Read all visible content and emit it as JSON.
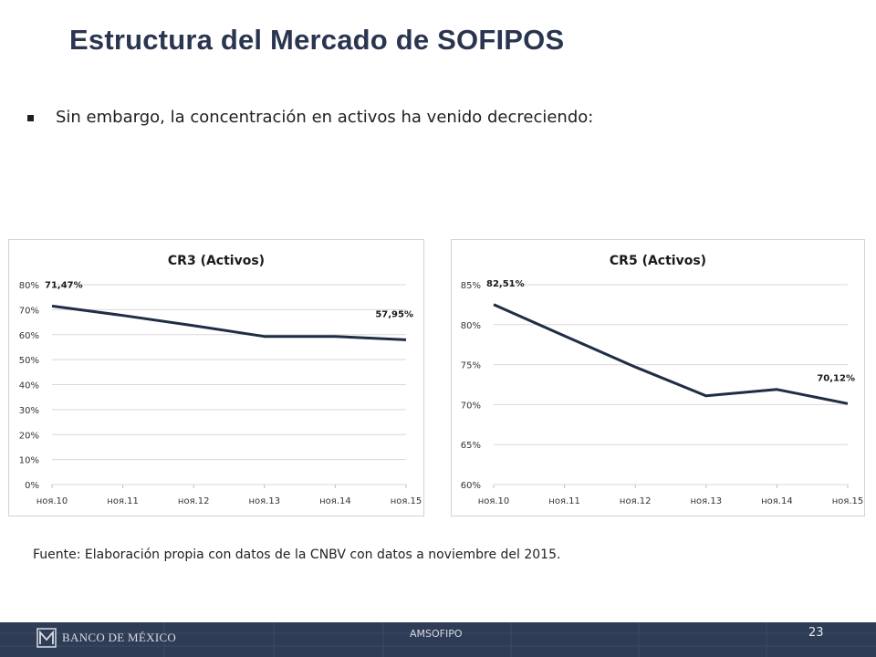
{
  "slide": {
    "title": "Estructura del Mercado de SOFIPOS",
    "bullet": "Sin embargo, la concentración en activos ha venido decreciendo:",
    "source": "Fuente: Elaboración propia con datos de la CNBV con datos a noviembre del 2015."
  },
  "footer": {
    "logo_text": "BANCO DE MÉXICO",
    "center": "AMSOFIPO",
    "page": "23",
    "background": "#2f3c55"
  },
  "chart_data": [
    {
      "type": "line",
      "title": "CR3 (Activos)",
      "categories": [
        "ноя.10",
        "ноя.11",
        "ноя.12",
        "ноя.13",
        "ноя.14",
        "ноя.15"
      ],
      "values": [
        71.47,
        67.7,
        63.6,
        59.3,
        59.3,
        57.95
      ],
      "ylim": [
        0,
        80
      ],
      "yticks": [
        "0%",
        "10%",
        "20%",
        "30%",
        "40%",
        "50%",
        "60%",
        "70%",
        "80%"
      ],
      "data_labels": [
        {
          "index": 0,
          "text": "71,47%"
        },
        {
          "index": 5,
          "text": "57,95%"
        }
      ],
      "grid": true,
      "line_color": "#1f2d45"
    },
    {
      "type": "line",
      "title": "CR5 (Activos)",
      "categories": [
        "ноя.10",
        "ноя.11",
        "ноя.12",
        "ноя.13",
        "ноя.14",
        "ноя.15"
      ],
      "values": [
        82.51,
        78.6,
        74.7,
        71.1,
        71.9,
        70.12
      ],
      "ylim": [
        60,
        85
      ],
      "yticks": [
        "60%",
        "65%",
        "70%",
        "75%",
        "80%",
        "85%"
      ],
      "data_labels": [
        {
          "index": 0,
          "text": "82,51%"
        },
        {
          "index": 5,
          "text": "70,12%"
        }
      ],
      "grid": true,
      "line_color": "#1f2d45"
    }
  ]
}
